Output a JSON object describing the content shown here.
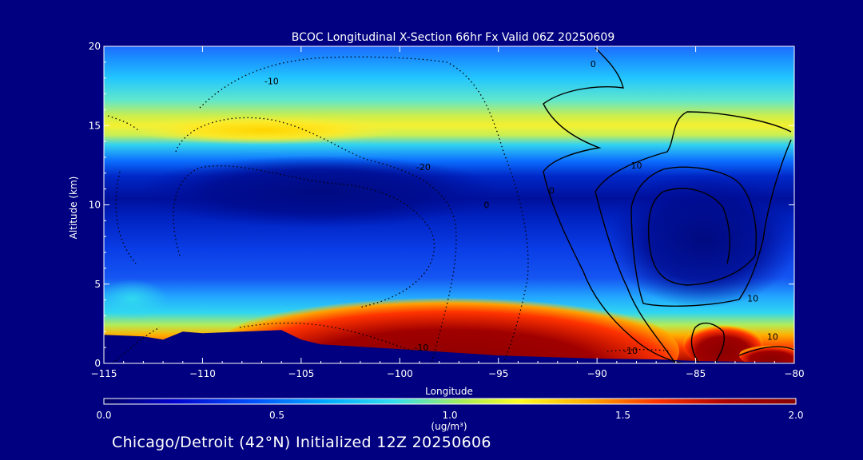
{
  "chart_data": {
    "type": "heatmap",
    "title": "BCOC Longitudinal X-Section 66hr  Fx Valid 06Z 20250609",
    "xlabel": "Longitude",
    "ylabel": "Altitude (km)",
    "xlim": [
      -115,
      -80
    ],
    "ylim": [
      0,
      20
    ],
    "x_ticks": [
      -115,
      -110,
      -105,
      -100,
      -95,
      -90,
      -85,
      -80
    ],
    "x_tick_labels": [
      "−115",
      "−110",
      "−105",
      "−100",
      "−95",
      "−90",
      "−85",
      "−80"
    ],
    "y_ticks": [
      0,
      5,
      10,
      15,
      20
    ],
    "y_tick_labels": [
      "0",
      "5",
      "10",
      "15",
      "20"
    ],
    "colorbar": {
      "min": 0.0,
      "max": 2.0,
      "ticks": [
        0.0,
        0.5,
        1.0,
        1.5,
        2.0
      ],
      "tick_labels": [
        "0.0",
        "0.5",
        "1.0",
        "1.5",
        "2.0"
      ],
      "unit_label": "(ug/m³)",
      "colors": [
        "#000066",
        "#0000cc",
        "#0055ff",
        "#00aaff",
        "#33ddee",
        "#aaee55",
        "#ffff22",
        "#ffaa00",
        "#ff3300",
        "#aa0000",
        "#880000"
      ]
    },
    "contour_labels": [
      {
        "text": "-10",
        "lon": -106.5,
        "alt": 17.8
      },
      {
        "text": "-20",
        "lon": -98.8,
        "alt": 12.4
      },
      {
        "text": "0",
        "lon": -90.2,
        "alt": 18.9
      },
      {
        "text": "0",
        "lon": -92.3,
        "alt": 10.9
      },
      {
        "text": "0",
        "lon": -95.6,
        "alt": 10.0
      },
      {
        "text": "10",
        "lon": -88.0,
        "alt": 12.5
      },
      {
        "text": "10",
        "lon": -82.1,
        "alt": 4.1
      },
      {
        "text": "10",
        "lon": -81.1,
        "alt": 1.7
      },
      {
        "text": "-10",
        "lon": -98.9,
        "alt": 1.0
      },
      {
        "text": "-10",
        "lon": -88.3,
        "alt": 0.8
      }
    ],
    "terrain": [
      [
        -115,
        1.8
      ],
      [
        -113,
        1.7
      ],
      [
        -112,
        1.5
      ],
      [
        -111,
        2.0
      ],
      [
        -110,
        1.9
      ],
      [
        -108,
        2.0
      ],
      [
        -106,
        2.1
      ],
      [
        -105,
        1.5
      ],
      [
        -104,
        1.2
      ],
      [
        -100,
        0.9
      ],
      [
        -95,
        0.5
      ],
      [
        -90,
        0.3
      ],
      [
        -87,
        0.25
      ],
      [
        -85,
        0.15
      ],
      [
        -80,
        0.05
      ]
    ]
  },
  "caption": "Chicago/Detroit (42°N) Initialized 12Z 20250606"
}
